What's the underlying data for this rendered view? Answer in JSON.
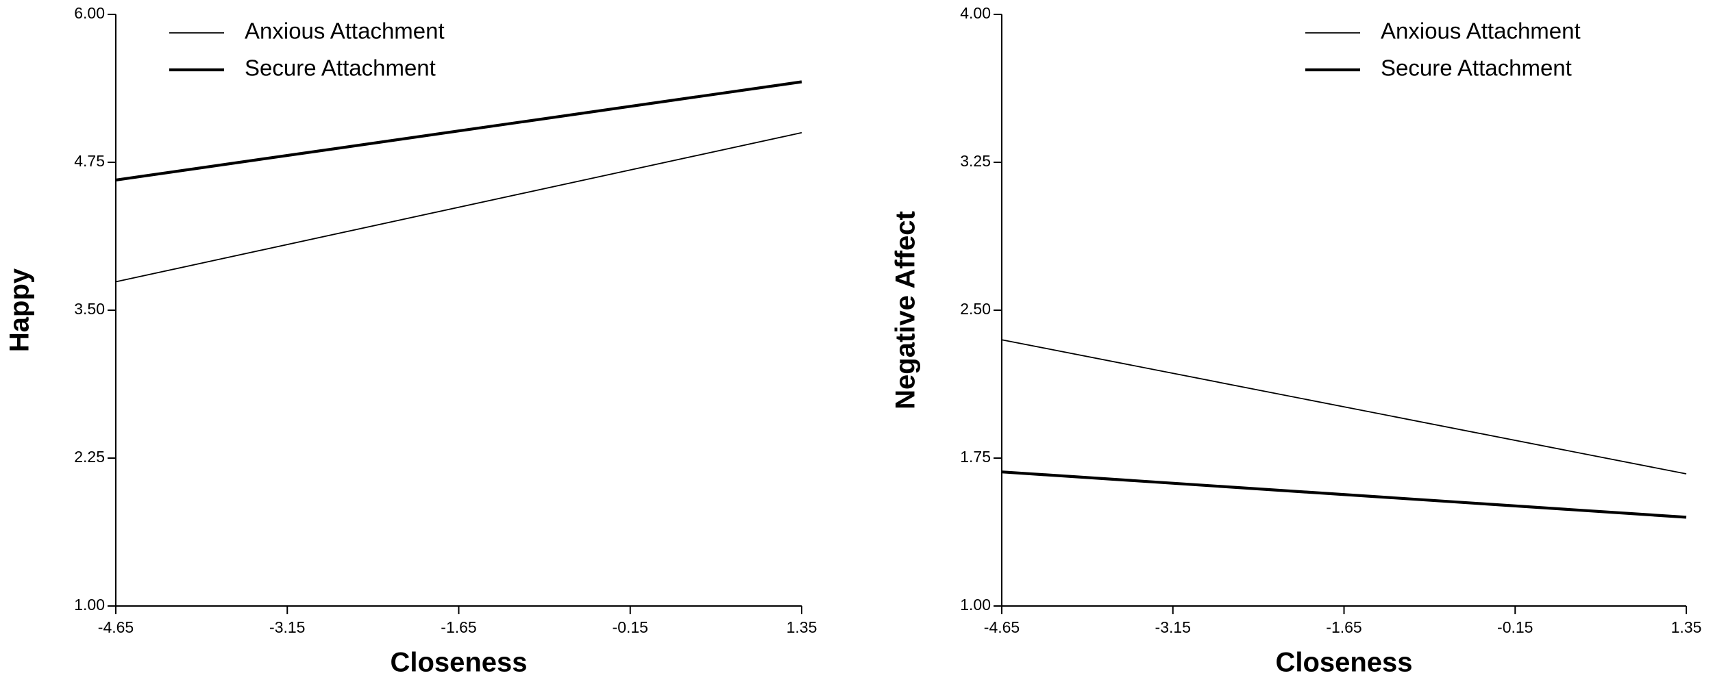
{
  "chart_data": [
    {
      "type": "line",
      "xlabel": "Closeness",
      "ylabel": "Happy",
      "x": [
        -4.65,
        1.35
      ],
      "xlim": [
        -4.65,
        1.35
      ],
      "xticks": [
        -4.65,
        -3.15,
        -1.65,
        -0.15,
        1.35
      ],
      "ylim": [
        1,
        6
      ],
      "yticks": [
        {
          "value": 1,
          "label": "1.00"
        },
        {
          "value": 2.25,
          "label": "2.25"
        },
        {
          "value": 3.5,
          "label": "3.50"
        },
        {
          "value": 4.75,
          "label": "4.75"
        },
        {
          "value": 6,
          "label": "6.00"
        }
      ],
      "legend": "upper left",
      "series": [
        {
          "name": "Anxious Attachment",
          "color": "#000000",
          "values": [
            3.74,
            5.0
          ]
        },
        {
          "name": "Secure Attachment",
          "color": "#000000",
          "values": [
            4.6,
            5.43
          ]
        }
      ]
    },
    {
      "type": "line",
      "xlabel": "Closeness",
      "ylabel": "Negative Affect",
      "x": [
        -4.65,
        1.35
      ],
      "xlim": [
        -4.65,
        1.35
      ],
      "xticks": [
        -4.65,
        -3.15,
        -1.65,
        -0.15,
        1.35
      ],
      "ylim": [
        1,
        4
      ],
      "yticks": [
        {
          "value": 1,
          "label": "1.00"
        },
        {
          "value": 1.75,
          "label": "1.75"
        },
        {
          "value": 2.5,
          "label": "2.50"
        },
        {
          "value": 3.25,
          "label": "3.25"
        },
        {
          "value": 4,
          "label": "4.00"
        }
      ],
      "legend": "upper right",
      "series": [
        {
          "name": "Anxious Attachment",
          "color": "#000000",
          "values": [
            2.35,
            1.67
          ]
        },
        {
          "name": "Secure Attachment",
          "color": "#000000",
          "values": [
            1.68,
            1.45
          ]
        }
      ]
    }
  ]
}
